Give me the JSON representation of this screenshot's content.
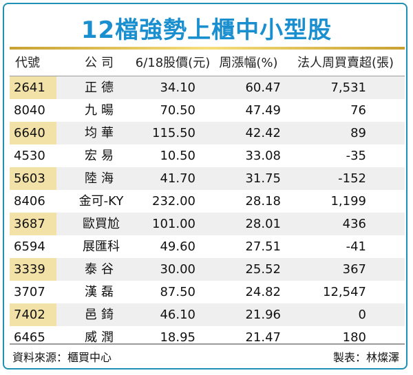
{
  "title": "12檔強勢上櫃中小型股",
  "chart_data": {
    "type": "table",
    "title": "12檔強勢上櫃中小型股",
    "columns": [
      "代號",
      "公司",
      "6/18股價(元)",
      "周漲幅(%)",
      "法人周買賣超(張)"
    ],
    "rows": [
      [
        "2641",
        "正德",
        "34.10",
        "60.47",
        "7,531"
      ],
      [
        "8040",
        "九暘",
        "70.50",
        "47.49",
        "76"
      ],
      [
        "6640",
        "均華",
        "115.50",
        "42.42",
        "89"
      ],
      [
        "4530",
        "宏易",
        "10.50",
        "33.08",
        "-35"
      ],
      [
        "5603",
        "陸海",
        "41.70",
        "31.75",
        "-152"
      ],
      [
        "8406",
        "金可-KY",
        "232.00",
        "28.18",
        "1,199"
      ],
      [
        "3687",
        "歐買尬",
        "101.00",
        "28.01",
        "436"
      ],
      [
        "6594",
        "展匯科",
        "49.60",
        "27.51",
        "-41"
      ],
      [
        "3339",
        "泰谷",
        "30.00",
        "25.52",
        "367"
      ],
      [
        "3707",
        "漢磊",
        "87.50",
        "24.82",
        "12,547"
      ],
      [
        "7402",
        "邑錡",
        "46.10",
        "21.96",
        "0"
      ],
      [
        "6465",
        "威潤",
        "18.95",
        "21.47",
        "180"
      ]
    ]
  },
  "footer": {
    "source": "資料來源：櫃買中心",
    "maker": "製表：林燦澤"
  },
  "colors": {
    "title": "#1a8fd0",
    "border": "#1f8fb4",
    "highlight_code": "#f3e2a8",
    "row_shade": "#efefef"
  }
}
